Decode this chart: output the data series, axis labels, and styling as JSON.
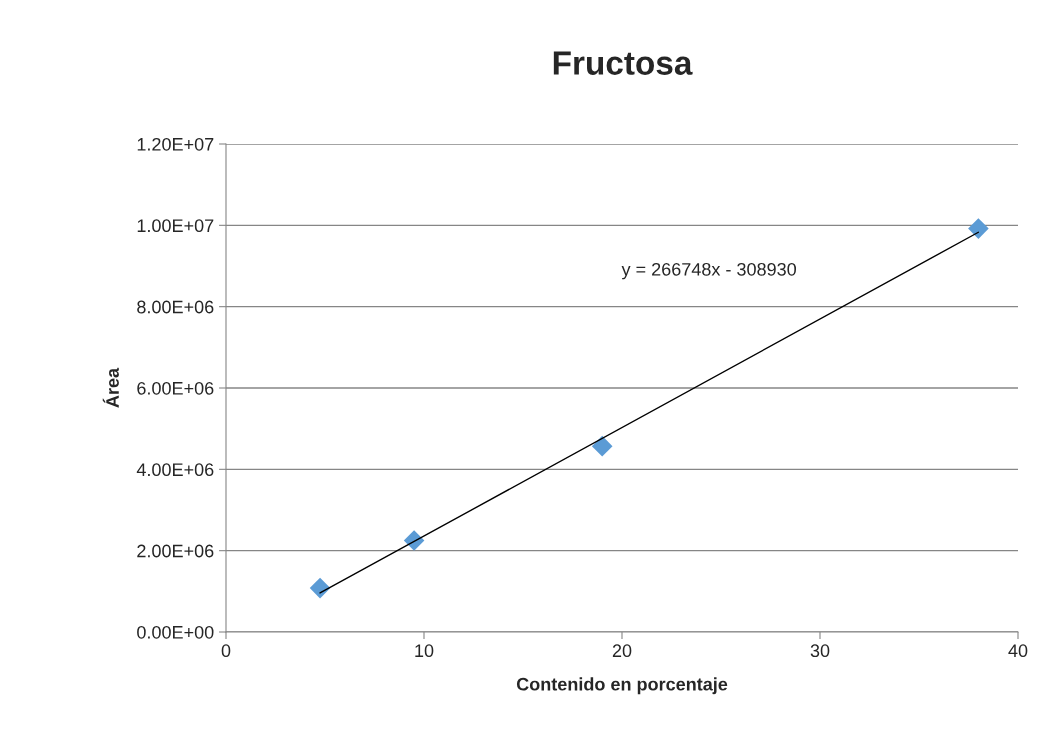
{
  "chart_data": {
    "type": "scatter",
    "title": "Fructosa",
    "xlabel": "Contenido en porcentaje",
    "ylabel": "Área",
    "x": [
      4.75,
      9.5,
      19,
      38
    ],
    "series": [
      {
        "color": "#5b9bd5",
        "marker": "diamond",
        "values": [
          1080000,
          2250000,
          4570000,
          9920000
        ]
      },
      {
        "type": "line",
        "color": "#000000",
        "marker": "none",
        "x": [
          4.75,
          38
        ],
        "values": [
          960000,
          9830000
        ]
      }
    ],
    "annotations": [
      "y = 266748x - 308930"
    ],
    "xlim": [
      0,
      40
    ],
    "xticks": [
      0,
      10,
      20,
      30,
      40
    ],
    "ylim": [
      0,
      12000000
    ],
    "yticks": [
      {
        "value": 0,
        "label": "0.00E+00"
      },
      {
        "value": 2000000,
        "label": "2.00E+06"
      },
      {
        "value": 4000000,
        "label": "4.00E+06"
      },
      {
        "value": 6000000,
        "label": "6.00E+06"
      },
      {
        "value": 8000000,
        "label": "8.00E+06"
      },
      {
        "value": 10000000,
        "label": "1.00E+07"
      },
      {
        "value": 12000000,
        "label": "1.20E+07"
      }
    ],
    "grid": "y",
    "legend": false
  }
}
